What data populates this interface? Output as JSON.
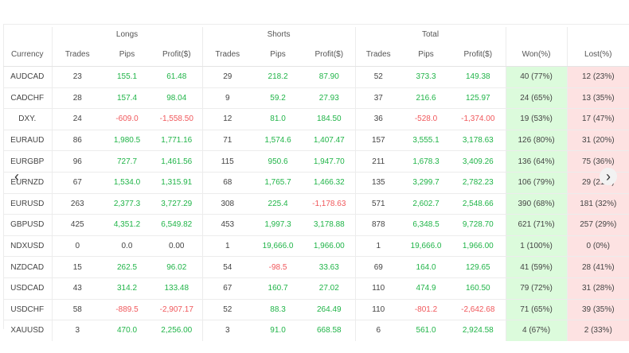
{
  "groups": {
    "longs": "Longs",
    "shorts": "Shorts",
    "total": "Total"
  },
  "columns": [
    "Currency",
    "Trades",
    "Pips",
    "Profit($)",
    "Trades",
    "Pips",
    "Profit($)",
    "Trades",
    "Pips",
    "Profit($)",
    "Won(%)",
    "Lost(%)"
  ],
  "rows": [
    {
      "currency": "AUDCAD",
      "l_trades": "23",
      "l_pips": "155.1",
      "l_profit": "61.48",
      "s_trades": "29",
      "s_pips": "218.2",
      "s_profit": "87.90",
      "t_trades": "52",
      "t_pips": "373.3",
      "t_profit": "149.38",
      "won": "40 (77%)",
      "lost": "12 (23%)"
    },
    {
      "currency": "CADCHF",
      "l_trades": "28",
      "l_pips": "157.4",
      "l_profit": "98.04",
      "s_trades": "9",
      "s_pips": "59.2",
      "s_profit": "27.93",
      "t_trades": "37",
      "t_pips": "216.6",
      "t_profit": "125.97",
      "won": "24 (65%)",
      "lost": "13 (35%)"
    },
    {
      "currency": "DXY.",
      "l_trades": "24",
      "l_pips": "-609.0",
      "l_profit": "-1,558.50",
      "s_trades": "12",
      "s_pips": "81.0",
      "s_profit": "184.50",
      "t_trades": "36",
      "t_pips": "-528.0",
      "t_profit": "-1,374.00",
      "won": "19 (53%)",
      "lost": "17 (47%)"
    },
    {
      "currency": "EURAUD",
      "l_trades": "86",
      "l_pips": "1,980.5",
      "l_profit": "1,771.16",
      "s_trades": "71",
      "s_pips": "1,574.6",
      "s_profit": "1,407.47",
      "t_trades": "157",
      "t_pips": "3,555.1",
      "t_profit": "3,178.63",
      "won": "126 (80%)",
      "lost": "31 (20%)"
    },
    {
      "currency": "EURGBP",
      "l_trades": "96",
      "l_pips": "727.7",
      "l_profit": "1,461.56",
      "s_trades": "115",
      "s_pips": "950.6",
      "s_profit": "1,947.70",
      "t_trades": "211",
      "t_pips": "1,678.3",
      "t_profit": "3,409.26",
      "won": "136 (64%)",
      "lost": "75 (36%)"
    },
    {
      "currency": "EURNZD",
      "l_trades": "67",
      "l_pips": "1,534.0",
      "l_profit": "1,315.91",
      "s_trades": "68",
      "s_pips": "1,765.7",
      "s_profit": "1,466.32",
      "t_trades": "135",
      "t_pips": "3,299.7",
      "t_profit": "2,782.23",
      "won": "106 (79%)",
      "lost": "29 (21%)"
    },
    {
      "currency": "EURUSD",
      "l_trades": "263",
      "l_pips": "2,377.3",
      "l_profit": "3,727.29",
      "s_trades": "308",
      "s_pips": "225.4",
      "s_profit": "-1,178.63",
      "t_trades": "571",
      "t_pips": "2,602.7",
      "t_profit": "2,548.66",
      "won": "390 (68%)",
      "lost": "181 (32%)"
    },
    {
      "currency": "GBPUSD",
      "l_trades": "425",
      "l_pips": "4,351.2",
      "l_profit": "6,549.82",
      "s_trades": "453",
      "s_pips": "1,997.3",
      "s_profit": "3,178.88",
      "t_trades": "878",
      "t_pips": "6,348.5",
      "t_profit": "9,728.70",
      "won": "621 (71%)",
      "lost": "257 (29%)"
    },
    {
      "currency": "NDXUSD",
      "l_trades": "0",
      "l_pips": "0.0",
      "l_profit": "0.00",
      "s_trades": "1",
      "s_pips": "19,666.0",
      "s_profit": "1,966.00",
      "t_trades": "1",
      "t_pips": "19,666.0",
      "t_profit": "1,966.00",
      "won": "1 (100%)",
      "lost": "0 (0%)"
    },
    {
      "currency": "NZDCAD",
      "l_trades": "15",
      "l_pips": "262.5",
      "l_profit": "96.02",
      "s_trades": "54",
      "s_pips": "-98.5",
      "s_profit": "33.63",
      "t_trades": "69",
      "t_pips": "164.0",
      "t_profit": "129.65",
      "won": "41 (59%)",
      "lost": "28 (41%)"
    },
    {
      "currency": "USDCAD",
      "l_trades": "43",
      "l_pips": "314.2",
      "l_profit": "133.48",
      "s_trades": "67",
      "s_pips": "160.7",
      "s_profit": "27.02",
      "t_trades": "110",
      "t_pips": "474.9",
      "t_profit": "160.50",
      "won": "79 (72%)",
      "lost": "31 (28%)"
    },
    {
      "currency": "USDCHF",
      "l_trades": "58",
      "l_pips": "-889.5",
      "l_profit": "-2,907.17",
      "s_trades": "52",
      "s_pips": "88.3",
      "s_profit": "264.49",
      "t_trades": "110",
      "t_pips": "-801.2",
      "t_profit": "-2,642.68",
      "won": "71 (65%)",
      "lost": "39 (35%)"
    },
    {
      "currency": "XAUUSD",
      "l_trades": "3",
      "l_pips": "470.0",
      "l_profit": "2,256.00",
      "s_trades": "3",
      "s_pips": "91.0",
      "s_profit": "668.58",
      "t_trades": "6",
      "t_pips": "561.0",
      "t_profit": "2,924.58",
      "won": "4 (67%)",
      "lost": "2 (33%)"
    }
  ],
  "nav": {
    "prev_icon": "chevron-left-icon",
    "next_icon": "chevron-right-icon",
    "prev_glyph": "‹",
    "next_glyph": "›"
  },
  "colors": {
    "positive": "#20b448",
    "negative": "#f0575b",
    "won_bg": "#dcfbdc",
    "lost_bg": "#fde2e2"
  }
}
